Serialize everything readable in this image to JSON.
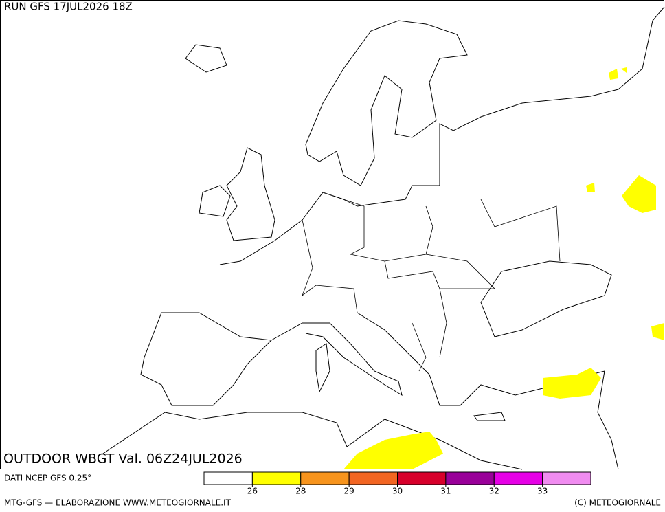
{
  "header": {
    "run": "RUN GFS 17JUL2026 18Z"
  },
  "map": {
    "title": "OUTDOOR WBGT Val. 06Z24JUL2026"
  },
  "footer": {
    "source": "DATI NCEP GFS 0.25°",
    "credit": "MTG-GFS — ELABORAZIONE WWW.METEOGIORNALE.IT",
    "copyright": "(C) METEOGIORNALE"
  },
  "colorbar": {
    "colors": [
      "#ffffff",
      "#ffff00",
      "#f7941d",
      "#f26522",
      "#d7002b",
      "#990099",
      "#e600e6",
      "#f08cf0"
    ],
    "ticks": [
      26,
      28,
      29,
      30,
      31,
      32,
      33
    ]
  }
}
